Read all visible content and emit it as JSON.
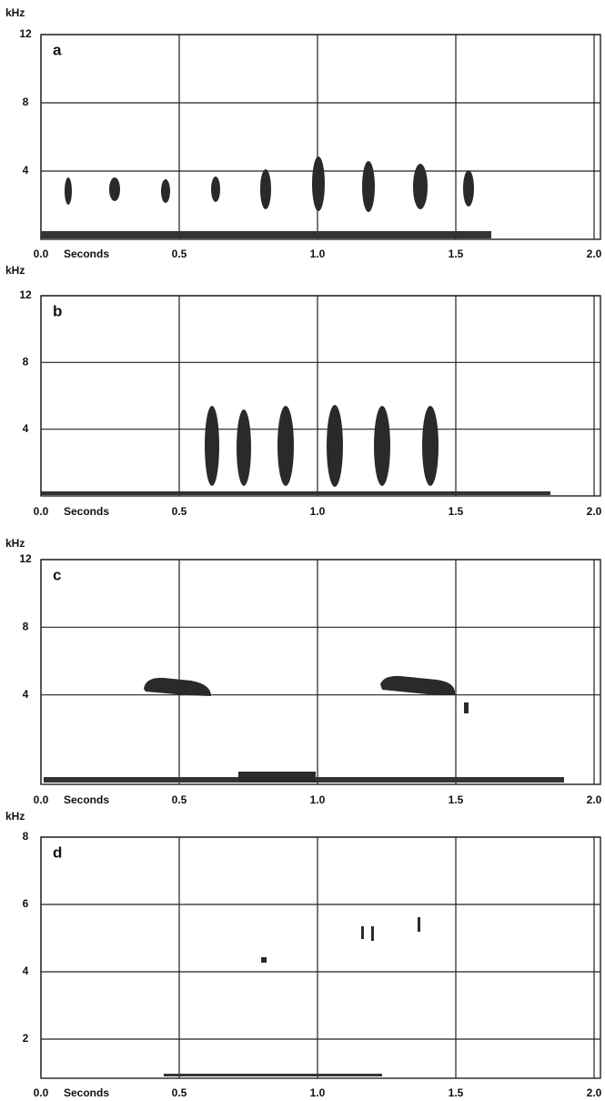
{
  "chart_data": [
    {
      "type": "spectrogram",
      "title": "a",
      "y_label": "kHz",
      "x_label": "Seconds",
      "xlim": [
        0,
        2
      ],
      "xticks": [
        {
          "value": 0,
          "label": "0.0"
        },
        0.5,
        {
          "value": 1,
          "label": "1.0"
        },
        1.5,
        {
          "value": 2,
          "label": "2.0"
        }
      ],
      "ylim": [
        0,
        12
      ],
      "yticks": [
        4,
        8,
        12
      ],
      "grid": true
    },
    {
      "type": "spectrogram",
      "title": "b",
      "y_label": "kHz",
      "x_label": "Seconds",
      "xlim": [
        0,
        2
      ],
      "xticks": [
        {
          "value": 0,
          "label": "0.0"
        },
        0.5,
        {
          "value": 1,
          "label": "1.0"
        },
        1.5,
        {
          "value": 2,
          "label": "2.0"
        }
      ],
      "ylim": [
        0,
        12
      ],
      "yticks": [
        4,
        8,
        12
      ],
      "grid": true
    },
    {
      "type": "spectrogram",
      "title": "c",
      "y_label": "kHz",
      "x_label": "Seconds",
      "xlim": [
        0,
        2
      ],
      "xticks": [
        {
          "value": 0,
          "label": "0.0"
        },
        0.5,
        {
          "value": 1,
          "label": "1.0"
        },
        1.5,
        {
          "value": 2,
          "label": "2.0"
        }
      ],
      "ylim": [
        0,
        12
      ],
      "yticks": [
        4,
        8,
        12
      ],
      "grid": true
    },
    {
      "type": "spectrogram",
      "title": "d",
      "y_label": "kHz",
      "x_label": "Seconds",
      "xlim": [
        0,
        2
      ],
      "xticks": [
        {
          "value": 0,
          "label": "0.0"
        },
        0.5,
        {
          "value": 1,
          "label": "1.0"
        },
        1.5,
        {
          "value": 2,
          "label": "2.0"
        }
      ],
      "ylim": [
        0,
        8
      ],
      "yticks": [
        2,
        4,
        6,
        8
      ],
      "grid": true
    }
  ]
}
